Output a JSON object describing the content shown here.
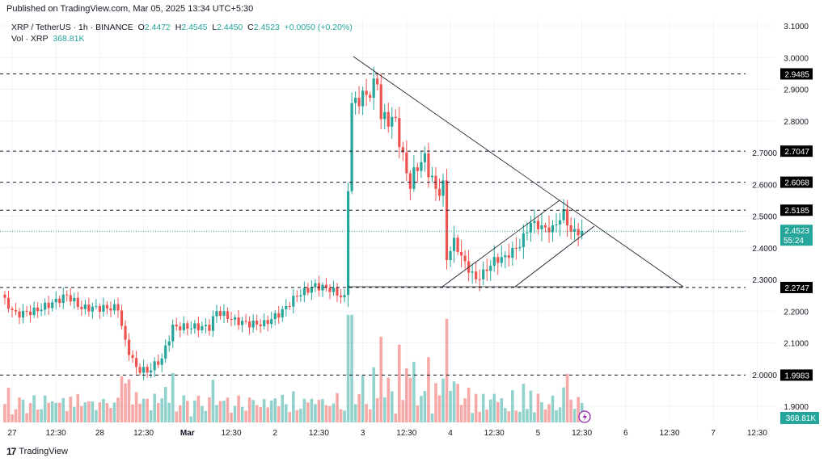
{
  "published": "Published on TradingView.com, Mar 05, 2025 13:34 UTC+5:30",
  "legend": {
    "symbol": "XRP / TetherUS · 1h · BINANCE",
    "o_label": "O",
    "o": "2.4472",
    "h_label": "H",
    "h": "2.4545",
    "l_label": "L",
    "l": "2.4450",
    "c_label": "C",
    "c": "2.4523",
    "change": "+0.0050 (+0.20%)",
    "vol_label": "Vol · XRP",
    "vol": "368.81K"
  },
  "footer": {
    "logo": "TradingView",
    "logo_mark": "17"
  },
  "colors": {
    "up": "#26a69a",
    "down": "#ef5350",
    "level_box": "#000000",
    "current_box": "#26a69a",
    "lightning": "#9c27b0"
  },
  "icons": {
    "lightning": "lightning-icon"
  },
  "chart_data": {
    "type": "candlestick",
    "price_axis": {
      "min": 1.9,
      "max": 3.1,
      "ticks": [
        "3.1000",
        "3.0000",
        "2.9000",
        "2.8000",
        "2.7000",
        "2.6000",
        "2.5000",
        "2.4000",
        "2.3000",
        "2.2000",
        "2.1000",
        "2.0000",
        "1.9000"
      ]
    },
    "time_axis": {
      "ticks": [
        "27",
        "12:30",
        "28",
        "12:30",
        "Mar",
        "12:30",
        "2",
        "12:30",
        "3",
        "12:30",
        "4",
        "12:30",
        "5",
        "12:30",
        "6",
        "12:30",
        "7",
        "12:30"
      ]
    },
    "levels": [
      "2.9485",
      "2.7047",
      "2.6068",
      "2.5185",
      "2.2747",
      "1.9983"
    ],
    "current_price": "2.4523",
    "countdown": "55:24",
    "current_volume": "368.81K",
    "close_path_hours_from_feb27": [
      [
        -2,
        2.23
      ],
      [
        1,
        2.19
      ],
      [
        6,
        2.2
      ],
      [
        10,
        2.22
      ],
      [
        15,
        2.25
      ],
      [
        19,
        2.21
      ],
      [
        23,
        2.21
      ],
      [
        29,
        2.21
      ],
      [
        31,
        2.1
      ],
      [
        34,
        2.02
      ],
      [
        37,
        2.01
      ],
      [
        41,
        2.05
      ],
      [
        44,
        2.15
      ],
      [
        47,
        2.15
      ],
      [
        54,
        2.15
      ],
      [
        56,
        2.2
      ],
      [
        61,
        2.17
      ],
      [
        65,
        2.16
      ],
      [
        69,
        2.16
      ],
      [
        74,
        2.2
      ],
      [
        78,
        2.25
      ],
      [
        83,
        2.28
      ],
      [
        87,
        2.27
      ],
      [
        91,
        2.24
      ],
      [
        92,
        2.6
      ],
      [
        93,
        2.85
      ],
      [
        95,
        2.87
      ],
      [
        98,
        2.89
      ],
      [
        100,
        2.93
      ],
      [
        101,
        2.81
      ],
      [
        105,
        2.8
      ],
      [
        107,
        2.68
      ],
      [
        109,
        2.6
      ],
      [
        111,
        2.66
      ],
      [
        113,
        2.68
      ],
      [
        116,
        2.58
      ],
      [
        118,
        2.59
      ],
      [
        119,
        2.37
      ],
      [
        121,
        2.42
      ],
      [
        124,
        2.35
      ],
      [
        127,
        2.3
      ],
      [
        129,
        2.32
      ],
      [
        132,
        2.36
      ],
      [
        135,
        2.37
      ],
      [
        139,
        2.41
      ],
      [
        142,
        2.48
      ],
      [
        146,
        2.46
      ],
      [
        148,
        2.46
      ],
      [
        151,
        2.51
      ],
      [
        153,
        2.45
      ],
      [
        156,
        2.4523
      ]
    ]
  }
}
